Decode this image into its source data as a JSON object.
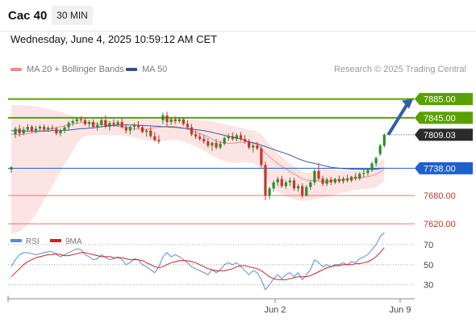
{
  "header": {
    "instrument": "Cac 40",
    "timeframe": "30 MIN",
    "datetime": "Wednesday, June 4, 2025 10:59:12 AM CET"
  },
  "legend": {
    "bb": {
      "label": "MA 20 + Bollinger Bands",
      "color": "#f08a8a"
    },
    "ma50": {
      "label": "MA 50",
      "color": "#2f4f8f"
    }
  },
  "credit": "Research © 2025 Trading Central",
  "colors": {
    "up": "#2e8b2e",
    "down": "#c0392b",
    "resistance": "#5aa000",
    "pivot": "#1f5fd0",
    "support": "#f07070",
    "arrow": "#2f5fa8",
    "rsi": "#5b8ad8",
    "rsi_ma": "#d42020"
  },
  "rsi_legend": {
    "rsi": "RSI",
    "ma": "9MA"
  },
  "chart_data": {
    "type": "candlestick",
    "x_ticks": [
      "Jun 2",
      "Jun 9"
    ],
    "y_range": [
      7598,
      7910
    ],
    "levels": [
      {
        "label": "7885.00",
        "value": 7885,
        "kind": "resistance"
      },
      {
        "label": "7845.00",
        "value": 7845,
        "kind": "resistance"
      },
      {
        "label": "7809.03",
        "value": 7809.03,
        "kind": "last"
      },
      {
        "label": "7738.00",
        "value": 7738,
        "kind": "pivot"
      },
      {
        "label": "7680.00",
        "value": 7680,
        "kind": "support"
      },
      {
        "label": "7620.00",
        "value": 7620,
        "kind": "support"
      }
    ],
    "candles": [
      [
        7735,
        7742,
        7728,
        7740
      ],
      [
        7810,
        7826,
        7802,
        7822
      ],
      [
        7822,
        7830,
        7805,
        7812
      ],
      [
        7812,
        7826,
        7808,
        7820
      ],
      [
        7820,
        7832,
        7815,
        7826
      ],
      [
        7826,
        7830,
        7814,
        7818
      ],
      [
        7818,
        7828,
        7812,
        7822
      ],
      [
        7822,
        7830,
        7818,
        7826
      ],
      [
        7826,
        7831,
        7817,
        7820
      ],
      [
        7820,
        7828,
        7815,
        7824
      ],
      [
        7824,
        7830,
        7818,
        7822
      ],
      [
        7822,
        7826,
        7808,
        7812
      ],
      [
        7812,
        7822,
        7806,
        7818
      ],
      [
        7818,
        7828,
        7812,
        7825
      ],
      [
        7825,
        7838,
        7820,
        7834
      ],
      [
        7834,
        7842,
        7828,
        7838
      ],
      [
        7838,
        7846,
        7832,
        7842
      ],
      [
        7842,
        7848,
        7836,
        7840
      ],
      [
        7840,
        7844,
        7828,
        7832
      ],
      [
        7832,
        7840,
        7825,
        7836
      ],
      [
        7836,
        7842,
        7822,
        7826
      ],
      [
        7826,
        7836,
        7818,
        7830
      ],
      [
        7830,
        7843,
        7826,
        7840
      ],
      [
        7840,
        7850,
        7822,
        7826
      ],
      [
        7826,
        7838,
        7818,
        7834
      ],
      [
        7834,
        7842,
        7826,
        7830
      ],
      [
        7830,
        7840,
        7826,
        7836
      ],
      [
        7836,
        7844,
        7822,
        7825
      ],
      [
        7825,
        7832,
        7812,
        7818
      ],
      [
        7818,
        7828,
        7810,
        7826
      ],
      [
        7826,
        7834,
        7818,
        7830
      ],
      [
        7830,
        7838,
        7822,
        7825
      ],
      [
        7825,
        7830,
        7812,
        7815
      ],
      [
        7815,
        7822,
        7805,
        7818
      ],
      [
        7818,
        7826,
        7802,
        7806
      ],
      [
        7806,
        7815,
        7795,
        7798
      ],
      [
        7798,
        7808,
        7790,
        7795
      ],
      [
        7840,
        7856,
        7832,
        7850
      ],
      [
        7850,
        7858,
        7828,
        7836
      ],
      [
        7836,
        7846,
        7830,
        7842
      ],
      [
        7842,
        7848,
        7832,
        7838
      ],
      [
        7838,
        7846,
        7834,
        7842
      ],
      [
        7842,
        7846,
        7828,
        7832
      ],
      [
        7832,
        7840,
        7820,
        7825
      ],
      [
        7825,
        7832,
        7806,
        7810
      ],
      [
        7810,
        7818,
        7800,
        7805
      ],
      [
        7805,
        7812,
        7796,
        7800
      ],
      [
        7800,
        7808,
        7790,
        7795
      ],
      [
        7795,
        7802,
        7782,
        7786
      ],
      [
        7786,
        7795,
        7775,
        7792
      ],
      [
        7792,
        7800,
        7778,
        7782
      ],
      [
        7782,
        7796,
        7778,
        7790
      ],
      [
        7790,
        7806,
        7786,
        7802
      ],
      [
        7802,
        7812,
        7796,
        7806
      ],
      [
        7806,
        7814,
        7796,
        7800
      ],
      [
        7800,
        7812,
        7795,
        7808
      ],
      [
        7808,
        7815,
        7796,
        7800
      ],
      [
        7800,
        7808,
        7790,
        7795
      ],
      [
        7795,
        7800,
        7778,
        7782
      ],
      [
        7782,
        7790,
        7772,
        7786
      ],
      [
        7786,
        7794,
        7776,
        7780
      ],
      [
        7780,
        7785,
        7740,
        7745
      ],
      [
        7745,
        7752,
        7670,
        7680
      ],
      [
        7680,
        7700,
        7672,
        7695
      ],
      [
        7695,
        7712,
        7688,
        7708
      ],
      [
        7708,
        7720,
        7700,
        7715
      ],
      [
        7715,
        7722,
        7696,
        7700
      ],
      [
        7700,
        7712,
        7694,
        7708
      ],
      [
        7708,
        7718,
        7700,
        7712
      ],
      [
        7712,
        7718,
        7690,
        7695
      ],
      [
        7695,
        7705,
        7688,
        7700
      ],
      [
        7700,
        7706,
        7675,
        7680
      ],
      [
        7680,
        7702,
        7678,
        7698
      ],
      [
        7698,
        7712,
        7692,
        7708
      ],
      [
        7708,
        7736,
        7702,
        7732
      ],
      [
        7732,
        7750,
        7712,
        7716
      ],
      [
        7716,
        7722,
        7700,
        7705
      ],
      [
        7705,
        7718,
        7700,
        7714
      ],
      [
        7714,
        7720,
        7702,
        7708
      ],
      [
        7708,
        7718,
        7704,
        7715
      ],
      [
        7715,
        7722,
        7706,
        7710
      ],
      [
        7710,
        7720,
        7705,
        7716
      ],
      [
        7716,
        7724,
        7708,
        7712
      ],
      [
        7712,
        7722,
        7708,
        7720
      ],
      [
        7720,
        7728,
        7712,
        7716
      ],
      [
        7716,
        7730,
        7712,
        7726
      ],
      [
        7726,
        7736,
        7718,
        7728
      ],
      [
        7728,
        7738,
        7722,
        7734
      ],
      [
        7734,
        7752,
        7730,
        7748
      ],
      [
        7748,
        7762,
        7742,
        7760
      ],
      [
        7768,
        7790,
        7764,
        7786
      ],
      [
        7786,
        7812,
        7782,
        7809
      ]
    ],
    "ma20": [
      7810,
      7810,
      7809,
      7810,
      7812,
      7813,
      7815,
      7816,
      7818,
      7820,
      7822,
      7824,
      7826,
      7828,
      7830,
      7832,
      7834,
      7835,
      7835,
      7834,
      7833,
      7832,
      7831,
      7830,
      7829,
      7828,
      7827,
      7826,
      7825,
      7823,
      7822,
      7821,
      7820,
      7820,
      7822,
      7824,
      7825,
      7826,
      7827,
      7827,
      7826,
      7825,
      7823,
      7821,
      7818,
      7815,
      7812,
      7808,
      7805,
      7800,
      7796,
      7793,
      7792,
      7791,
      7791,
      7792,
      7793,
      7794,
      7793,
      7791,
      7788,
      7780,
      7770,
      7762,
      7755,
      7748,
      7742,
      7737,
      7731,
      7726,
      7721,
      7716,
      7713,
      7712,
      7712,
      7711,
      7710,
      7710,
      7711,
      7712,
      7713,
      7714,
      7715,
      7716,
      7717,
      7718,
      7719,
      7720,
      7722,
      7725,
      7730,
      7736
    ],
    "bb_upper": [
      7872,
      7872,
      7872,
      7871,
      7871,
      7870,
      7869,
      7868,
      7866,
      7864,
      7862,
      7860,
      7857,
      7855,
      7852,
      7850,
      7848,
      7847,
      7846,
      7846,
      7846,
      7846,
      7846,
      7846,
      7846,
      7845,
      7845,
      7845,
      7844,
      7844,
      7844,
      7843,
      7843,
      7843,
      7843,
      7843,
      7842,
      7842,
      7842,
      7842,
      7842,
      7842,
      7842,
      7842,
      7841,
      7841,
      7840,
      7840,
      7839,
      7838,
      7836,
      7834,
      7832,
      7830,
      7828,
      7826,
      7824,
      7822,
      7820,
      7818,
      7816,
      7810,
      7800,
      7790,
      7780,
      7770,
      7762,
      7755,
      7748,
      7742,
      7736,
      7731,
      7728,
      7730,
      7733,
      7735,
      7737,
      7736,
      7735,
      7734,
      7733,
      7733,
      7732,
      7733,
      7734,
      7735,
      7736,
      7738,
      7740,
      7745,
      7752,
      7760
    ],
    "bb_lower": [
      7598,
      7600,
      7604,
      7610,
      7618,
      7628,
      7640,
      7655,
      7670,
      7685,
      7700,
      7715,
      7730,
      7745,
      7760,
      7775,
      7790,
      7800,
      7806,
      7808,
      7808,
      7808,
      7808,
      7808,
      7808,
      7808,
      7808,
      7807,
      7806,
      7805,
      7803,
      7801,
      7799,
      7797,
      7795,
      7795,
      7795,
      7796,
      7797,
      7798,
      7798,
      7797,
      7795,
      7792,
      7788,
      7784,
      7780,
      7775,
      7770,
      7765,
      7760,
      7756,
      7752,
      7750,
      7749,
      7749,
      7750,
      7751,
      7750,
      7748,
      7744,
      7735,
      7720,
      7705,
      7695,
      7688,
      7683,
      7679,
      7675,
      7672,
      7670,
      7669,
      7669,
      7670,
      7672,
      7674,
      7676,
      7678,
      7680,
      7682,
      7684,
      7686,
      7688,
      7690,
      7692,
      7693,
      7694,
      7695,
      7696,
      7698,
      7704,
      7712
    ],
    "ma50": [
      7818,
      7818,
      7818,
      7817,
      7817,
      7817,
      7817,
      7817,
      7817,
      7817,
      7818,
      7818,
      7818,
      7819,
      7819,
      7820,
      7821,
      7822,
      7822,
      7823,
      7824,
      7825,
      7826,
      7827,
      7828,
      7829,
      7830,
      7830,
      7830,
      7830,
      7830,
      7829,
      7829,
      7828,
      7828,
      7827,
      7827,
      7826,
      7826,
      7825,
      7825,
      7824,
      7823,
      7822,
      7821,
      7820,
      7819,
      7818,
      7816,
      7814,
      7812,
      7810,
      7808,
      7806,
      7804,
      7802,
      7800,
      7797,
      7794,
      7792,
      7790,
      7787,
      7784,
      7781,
      7778,
      7775,
      7772,
      7769,
      7766,
      7762,
      7758,
      7755,
      7752,
      7750,
      7748,
      7746,
      7744,
      7742,
      7740,
      7739,
      7738,
      7737,
      7737,
      7736,
      7736,
      7736,
      7736,
      7736,
      7736,
      7736,
      7737,
      7738
    ],
    "rsi": [
      48,
      55,
      60,
      62,
      62,
      61,
      60,
      61,
      62,
      63,
      63,
      60,
      58,
      60,
      62,
      64,
      66,
      65,
      60,
      58,
      55,
      56,
      60,
      57,
      55,
      56,
      58,
      55,
      50,
      52,
      56,
      55,
      50,
      48,
      45,
      42,
      48,
      58,
      62,
      58,
      60,
      58,
      55,
      52,
      48,
      46,
      44,
      42,
      40,
      45,
      42,
      45,
      50,
      52,
      50,
      52,
      48,
      44,
      40,
      44,
      42,
      35,
      25,
      30,
      36,
      40,
      36,
      40,
      42,
      38,
      42,
      35,
      40,
      45,
      55,
      52,
      48,
      50,
      48,
      50,
      50,
      52,
      50,
      53,
      52,
      56,
      58,
      60,
      65,
      70,
      78,
      82
    ],
    "rsi_ma": [
      38,
      42,
      46,
      50,
      53,
      55,
      57,
      58,
      59,
      60,
      60,
      61,
      60,
      59,
      59,
      60,
      61,
      62,
      62,
      61,
      60,
      59,
      58,
      58,
      58,
      57,
      57,
      57,
      56,
      55,
      55,
      55,
      54,
      52,
      50,
      48,
      47,
      48,
      50,
      52,
      53,
      54,
      54,
      54,
      53,
      52,
      50,
      48,
      46,
      45,
      44,
      44,
      44,
      45,
      46,
      48,
      49,
      49,
      48,
      47,
      46,
      44,
      41,
      38,
      36,
      35,
      35,
      35,
      36,
      37,
      38,
      38,
      38,
      39,
      41,
      43,
      45,
      47,
      48,
      49,
      49,
      50,
      50,
      50,
      51,
      51,
      52,
      53,
      55,
      58,
      62,
      67
    ],
    "rsi_levels": [
      70,
      50,
      30
    ]
  }
}
